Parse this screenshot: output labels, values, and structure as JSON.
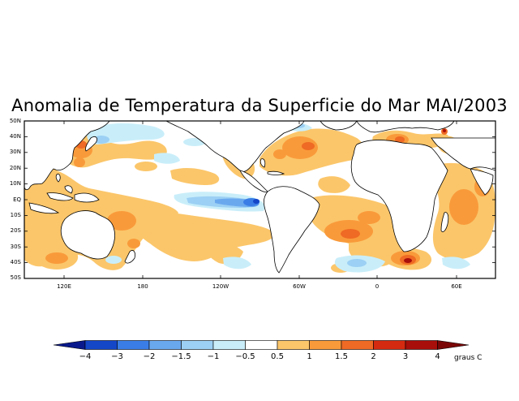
{
  "title": "Anomalia de Temperatura da Superficie do Mar MAI/2003",
  "lat_labels": [
    "50N",
    "40N",
    "30N",
    "20N",
    "10N",
    "EQ",
    "10S",
    "20S",
    "30S",
    "40S",
    "50S"
  ],
  "lon_labels": [
    "120E",
    "180",
    "120W",
    "60W",
    "0",
    "60E"
  ],
  "colorbar": {
    "labels": [
      "−4",
      "−3",
      "−2",
      "−1.5",
      "−1",
      "−0.5",
      "0.5",
      "1",
      "1.5",
      "2",
      "3",
      "4"
    ],
    "units": "graus C",
    "colors": [
      "#0a1a8c",
      "#1446c8",
      "#3a7de6",
      "#6aa8ee",
      "#9cd0f4",
      "#c9eefa",
      "#ffffff",
      "#fbc66a",
      "#f99a3a",
      "#ef6a24",
      "#d52a10",
      "#a80e0a",
      "#7a0606"
    ]
  },
  "anomaly_regions": {
    "warm": [
      "North Pacific off Japan",
      "Western Pacific warm pool",
      "Southwest Pacific",
      "North Atlantic",
      "Mediterranean",
      "South Atlantic",
      "Indian Ocean",
      "Off South Africa"
    ],
    "cold": [
      "Equatorial East Pacific (cold tongue)",
      "North Pacific Kuroshio",
      "Southern Ocean patches"
    ]
  }
}
